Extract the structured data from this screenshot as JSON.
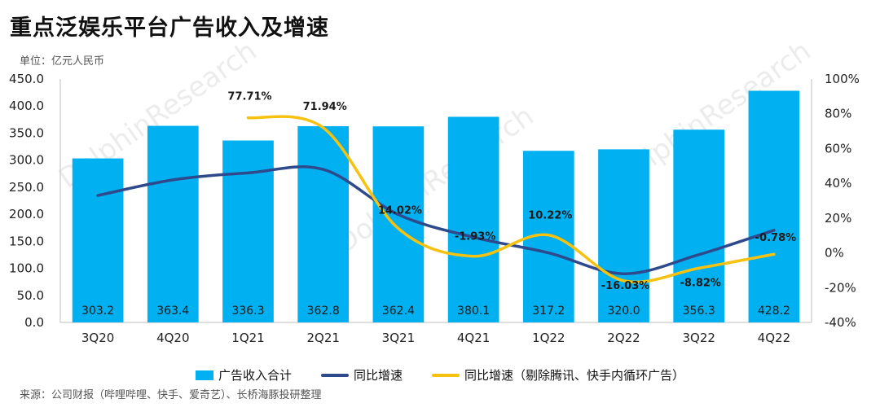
{
  "title": "重点泛娱乐平台广告收入及增速",
  "unit_label": "单位：亿元人民币",
  "source": "来源：公司财报（哔哩哔哩、快手、爱奇艺）、长桥海豚投研整理",
  "watermark": "DolphinResearch",
  "colors": {
    "bar": "#00B0F0",
    "line_total": "#2E4A8C",
    "line_ex": "#F7C10F"
  },
  "chart_data": {
    "type": "bar",
    "categories": [
      "3Q20",
      "4Q20",
      "1Q21",
      "2Q21",
      "3Q21",
      "4Q21",
      "1Q22",
      "2Q22",
      "3Q22",
      "4Q22"
    ],
    "series": [
      {
        "name": "广告收入合计",
        "type": "bar",
        "axis": "left",
        "values": [
          303.2,
          363.4,
          336.3,
          362.8,
          362.4,
          380.1,
          317.2,
          320.0,
          356.3,
          428.2
        ],
        "labels": [
          "303.2",
          "363.4",
          "336.3",
          "362.8",
          "362.4",
          "380.1",
          "317.2",
          "320.0",
          "356.3",
          "428.2"
        ]
      },
      {
        "name": "同比增速",
        "type": "line",
        "axis": "right",
        "values": [
          33,
          42,
          46,
          48,
          22,
          9,
          0,
          -12,
          -1,
          13
        ]
      },
      {
        "name": "同比增速（剔除腾讯、快手内循环广告）",
        "type": "line",
        "axis": "right",
        "values": [
          null,
          null,
          77.71,
          71.94,
          14.02,
          -1.93,
          10.22,
          -16.03,
          -8.82,
          -0.78
        ],
        "labels": [
          null,
          null,
          "77.71%",
          "71.94%",
          "14.02%",
          "-1.93%",
          "10.22%",
          "-16.03%",
          "-8.82%",
          "-0.78%"
        ]
      }
    ],
    "y_left": {
      "min": 0,
      "max": 450,
      "step": 50,
      "tick_labels": [
        "0.0",
        "50.0",
        "100.0",
        "150.0",
        "200.0",
        "250.0",
        "300.0",
        "350.0",
        "400.0",
        "450.0"
      ]
    },
    "y_right": {
      "min": -40,
      "max": 100,
      "step": 20,
      "tick_labels": [
        "-40%",
        "-20%",
        "0%",
        "20%",
        "40%",
        "60%",
        "80%",
        "100%"
      ]
    },
    "grid": false,
    "legend_position": "bottom"
  }
}
